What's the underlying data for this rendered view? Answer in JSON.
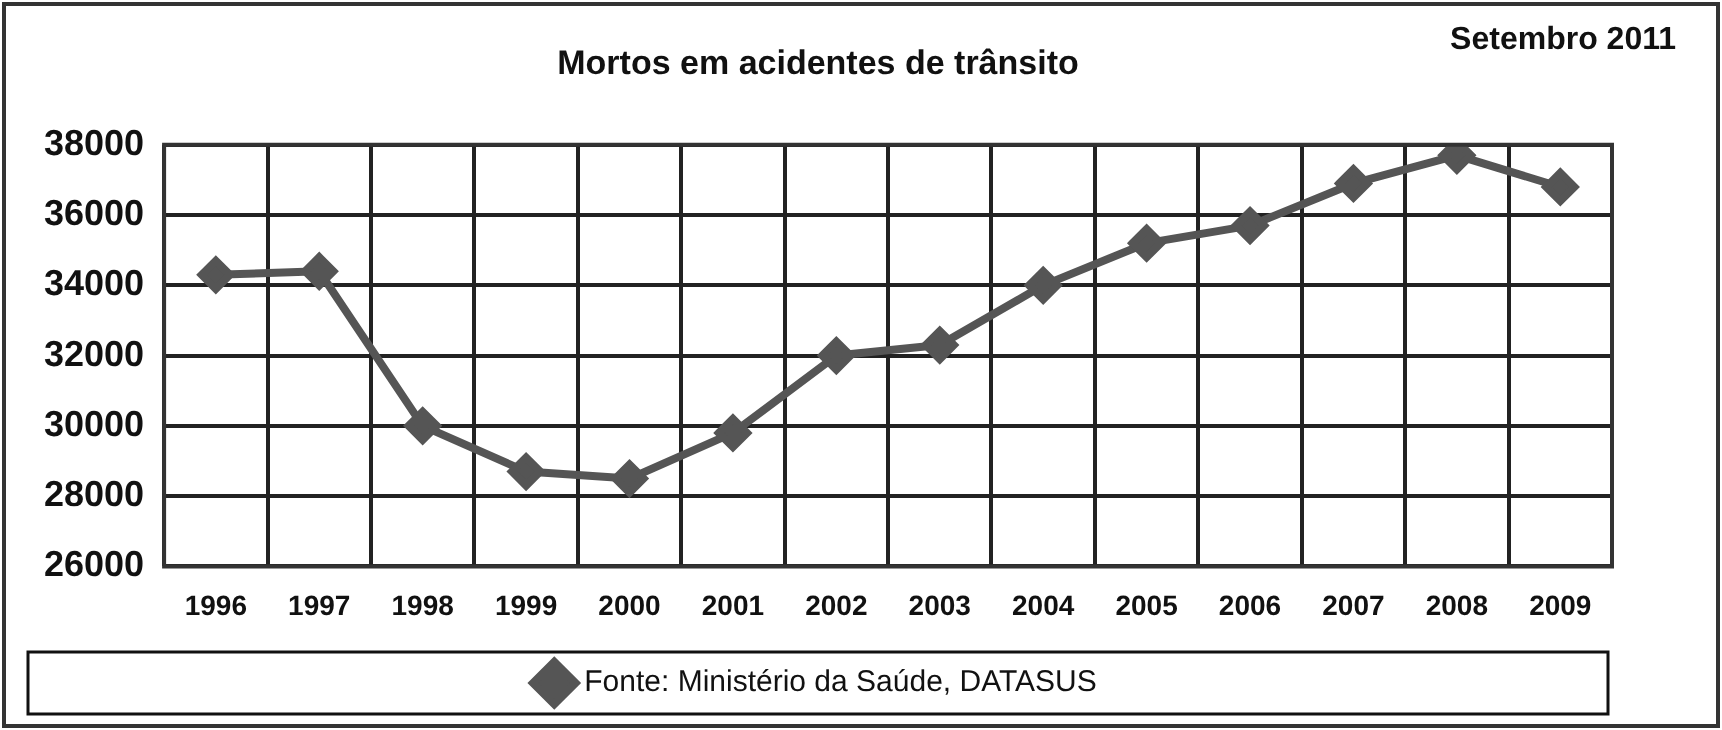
{
  "chart_data": {
    "type": "line",
    "title": "Mortos em acidentes de trânsito",
    "annotations": [
      "Setembro 2011"
    ],
    "categories": [
      "1996",
      "1997",
      "1998",
      "1999",
      "2000",
      "2001",
      "2002",
      "2003",
      "2004",
      "2005",
      "2006",
      "2007",
      "2008",
      "2009"
    ],
    "series": [
      {
        "name": "Fonte: Ministério da Saúde, DATASUS",
        "color": "#555555",
        "values": [
          34300,
          34400,
          30000,
          28700,
          28500,
          29800,
          32000,
          32300,
          34000,
          35200,
          35700,
          36900,
          37700,
          36800
        ]
      }
    ],
    "ylim": [
      26000,
      38000
    ],
    "yticks": [
      26000,
      28000,
      30000,
      32000,
      34000,
      36000,
      38000
    ],
    "grid": true,
    "legend": "bottom",
    "marker": "diamond",
    "line_style": "solid"
  }
}
